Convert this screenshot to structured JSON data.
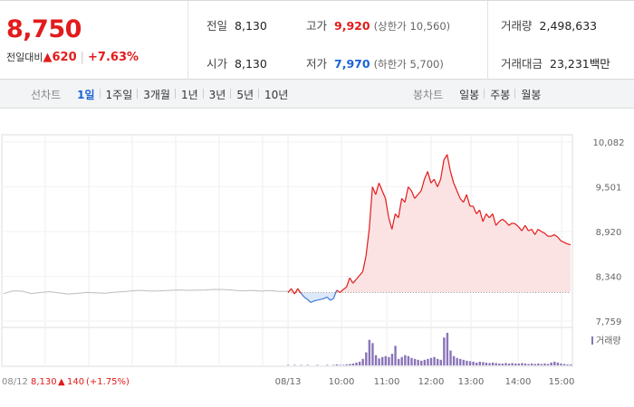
{
  "summary": {
    "price": "8,750",
    "change_label": "전일대비",
    "change_arrow": "▲",
    "change_value": "620",
    "change_rate": "+7.63%"
  },
  "info": {
    "prev": {
      "label": "전일",
      "value": "8,130"
    },
    "open": {
      "label": "시가",
      "value": "8,130"
    },
    "high": {
      "label": "고가",
      "value": "9,920",
      "sub": "(상한가 10,560)"
    },
    "low": {
      "label": "저가",
      "value": "7,970",
      "sub": "(하한가 5,700)"
    },
    "volume": {
      "label": "거래량",
      "value": "2,498,633"
    },
    "amount": {
      "label": "거래대금",
      "value": "23,231",
      "unit": "백만"
    }
  },
  "tabs": {
    "line_label": "선차트",
    "line_tabs": [
      "1일",
      "1주일",
      "3개월",
      "1년",
      "3년",
      "5년",
      "10년"
    ],
    "line_active": 0,
    "candle_label": "봉차트",
    "candle_tabs": [
      "일봉",
      "주봉",
      "월봉"
    ]
  },
  "colors": {
    "up": "#e21b1b",
    "down": "#1b63d6",
    "up_fill": "#fbe3e3",
    "prev_line": "#bdbdbd",
    "volume": "#8a74b8"
  },
  "chart_data": {
    "type": "line",
    "ylim": [
      7759,
      10082
    ],
    "yticks": [
      "10,082",
      "9,501",
      "8,920",
      "8,340",
      "7,759"
    ],
    "ytick_values": [
      10082,
      9501,
      8920,
      8340,
      7759
    ],
    "baseline": 8130,
    "x_labels": [
      "08/13",
      "10:00",
      "11:00",
      "12:00",
      "13:00",
      "14:00",
      "15:00"
    ],
    "volume_legend": "거래량",
    "prev_day": {
      "date": "08/12",
      "close": "8,130",
      "arrow": "▲",
      "change": "140",
      "rate": "(+1.75%)",
      "series": [
        8115,
        8150,
        8148,
        8115,
        8130,
        8140,
        8125,
        8110,
        8118,
        8130,
        8125,
        8120,
        8132,
        8140,
        8150,
        8158,
        8148,
        8150,
        8157,
        8162,
        8158,
        8160,
        8162,
        8170,
        8168,
        8160,
        8150,
        8157,
        8148,
        8155,
        8143,
        8145
      ]
    },
    "today": {
      "series": [
        8130,
        8180,
        8110,
        8180,
        8120,
        8070,
        8040,
        8000,
        8020,
        8030,
        8040,
        8050,
        8070,
        8030,
        8050,
        8160,
        8130,
        8170,
        8200,
        8320,
        8250,
        8300,
        8350,
        8400,
        8600,
        8950,
        9500,
        9400,
        9550,
        9450,
        9350,
        9100,
        8950,
        9150,
        9100,
        9350,
        9300,
        9500,
        9450,
        9350,
        9400,
        9450,
        9600,
        9700,
        9550,
        9600,
        9500,
        9600,
        9850,
        9920,
        9700,
        9550,
        9450,
        9350,
        9300,
        9400,
        9250,
        9250,
        9150,
        9200,
        9050,
        9150,
        9100,
        9150,
        9000,
        9050,
        9080,
        9050,
        9000,
        9030,
        9020,
        8980,
        8930,
        9000,
        8930,
        8950,
        8880,
        8950,
        8920,
        8900,
        8860,
        8860,
        8880,
        8850,
        8800,
        8780,
        8760,
        8750
      ]
    },
    "volume": [
      1,
      0,
      1,
      0,
      1,
      0,
      1,
      0,
      0,
      1,
      0,
      0,
      1,
      0,
      1,
      2,
      1,
      1,
      2,
      3,
      4,
      6,
      8,
      14,
      28,
      55,
      48,
      22,
      15,
      18,
      20,
      18,
      25,
      42,
      14,
      18,
      22,
      20,
      16,
      14,
      12,
      10,
      12,
      14,
      16,
      18,
      14,
      12,
      60,
      70,
      32,
      20,
      16,
      14,
      12,
      10,
      9,
      8,
      6,
      8,
      7,
      6,
      5,
      6,
      5,
      4,
      4,
      5,
      4,
      5,
      4,
      4,
      5,
      4,
      3,
      4,
      3,
      4,
      3,
      4,
      3,
      6,
      8,
      6,
      4,
      3,
      2,
      2
    ]
  }
}
